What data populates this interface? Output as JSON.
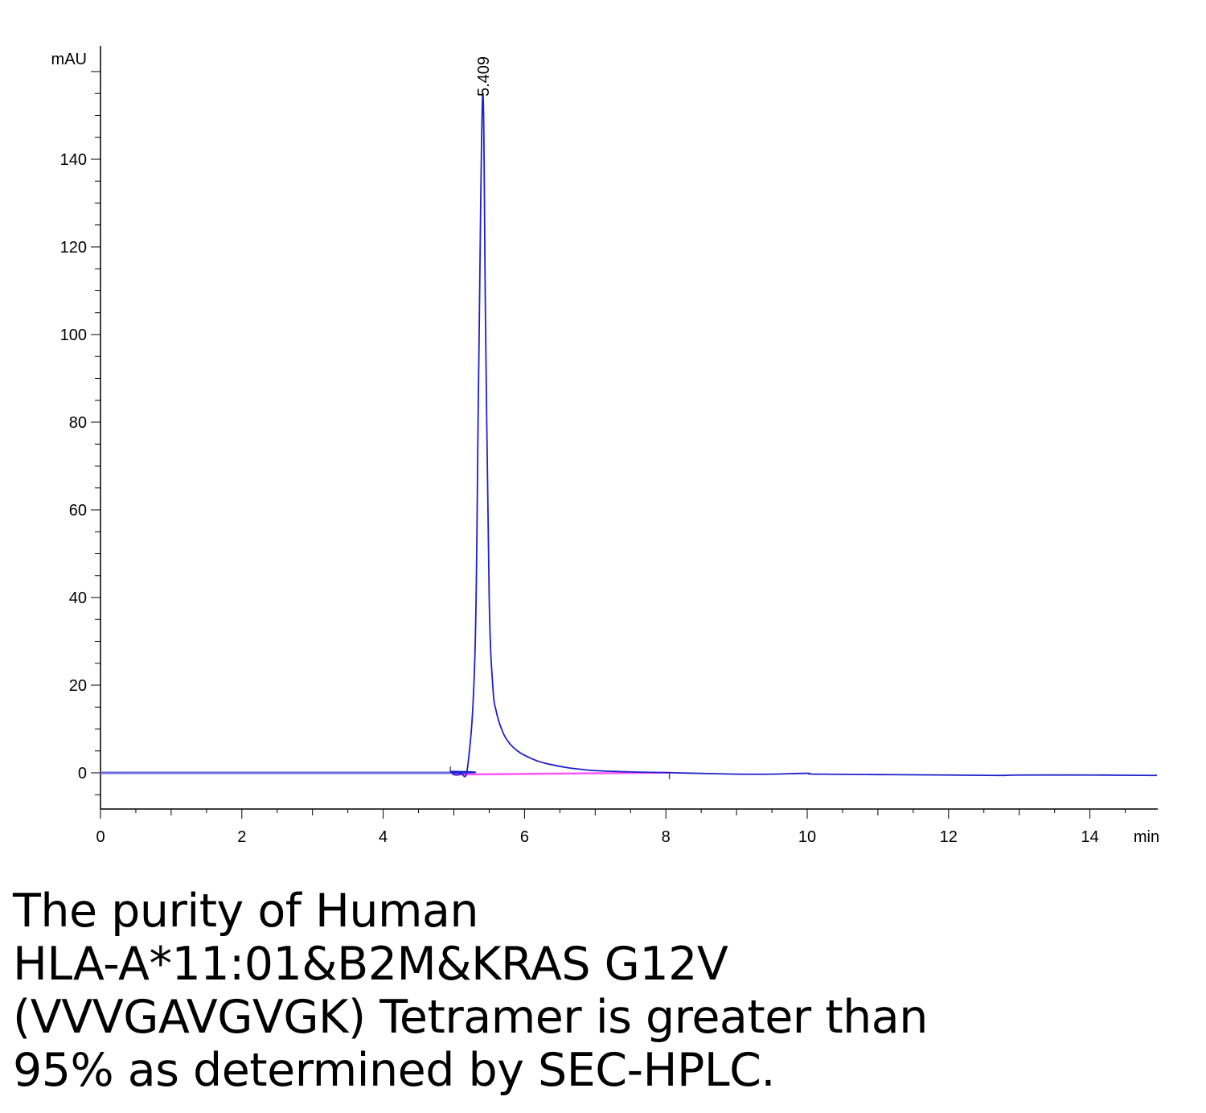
{
  "chart_data": {
    "type": "line",
    "ylabel": "mAU",
    "xlabel": "min",
    "xlim": [
      0,
      15
    ],
    "ylim": [
      -8,
      165
    ],
    "xticks": [
      0,
      2,
      4,
      6,
      8,
      10,
      12,
      14
    ],
    "yticks": [
      0,
      20,
      40,
      60,
      80,
      100,
      120,
      140
    ],
    "peak_label": "5.409",
    "colors": {
      "signal": "#1f1fcc",
      "baseline": "#ff55ff",
      "axis": "#000000"
    },
    "series": [
      {
        "x": [
          0,
          4.9,
          4.95,
          5.0,
          5.1,
          5.2,
          5.3,
          5.35,
          5.409,
          5.45,
          5.5,
          5.55,
          5.6,
          5.7,
          5.8,
          5.9,
          6.0,
          6.2,
          6.4,
          6.6,
          6.8,
          7.0,
          7.5,
          8.0,
          8.7,
          9.0,
          9.5,
          10.0,
          10.1,
          11.0,
          12.0,
          12.7,
          13.0,
          14.0,
          14.95
        ],
        "values": [
          0,
          0,
          0.3,
          -0.4,
          -0.2,
          2,
          28,
          90,
          155,
          100,
          40,
          20,
          14,
          9,
          6.5,
          5,
          4,
          2.6,
          1.8,
          1.2,
          0.8,
          0.5,
          0.2,
          0.05,
          -0.2,
          -0.3,
          -0.3,
          -0.1,
          -0.3,
          -0.4,
          -0.5,
          -0.6,
          -0.5,
          -0.5,
          -0.6
        ]
      }
    ],
    "baseline_segment": {
      "x": [
        5.0,
        8.05
      ],
      "values": [
        -0.4,
        0.05
      ]
    },
    "event_marks_x": [
      4.95,
      8.05
    ]
  },
  "caption": {
    "lines": [
      "The purity of Human",
      "HLA-A*11:01&B2M&KRAS G12V",
      "(VVVGAVGVGK) Tetramer is greater than",
      "95% as determined by SEC-HPLC."
    ]
  }
}
